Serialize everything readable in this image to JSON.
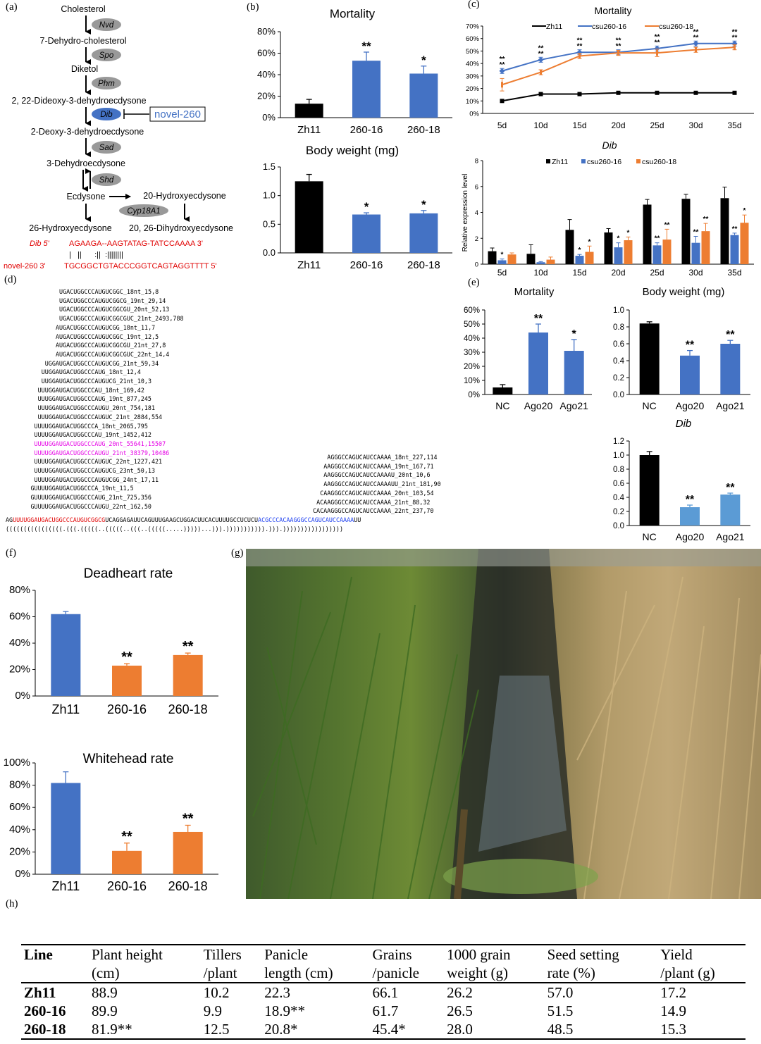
{
  "panel_labels": {
    "a": "(a)",
    "b": "(b)",
    "c": "(c)",
    "d": "(d)",
    "e": "(e)",
    "f": "(f)",
    "g": "(g)",
    "h": "(h)"
  },
  "pathway": {
    "compounds": [
      "Cholesterol",
      "7-Dehydro-cholesterol",
      "Diketol",
      "2, 22-Dideoxy-3-dehydroecdysone",
      "2-Deoxy-3-dehydroecdysone",
      "3-Dehydroecdysone",
      "Ecdysone",
      "20-Hydroxyecdysone",
      "26-Hydroxyecdysone",
      "20, 26-Dihydroxyecdysone"
    ],
    "enzymes": [
      "Nvd",
      "Spo",
      "Phm",
      "Dib",
      "Sad",
      "Shd",
      "Cyp18A1"
    ],
    "mirna_box": "novel-260",
    "target_label": "Dib 5'",
    "target_seq": "AGAAGA--AAGTATAG-TATCCAAAA 3'",
    "pairing": "|   ||      :||  :||||||||",
    "mirna_label": "novel-260 3'",
    "mirna_seq": "TGCGGCTGTACCCGGTCAGTAGGTTTT 5'"
  },
  "reads_left": [
    "UGACUGGCCCAUGUCGGC_18nt_15,8",
    "UGACUGGCCCAUGUCGGCG_19nt_29,14",
    "UGACUGGCCCAUGUCGGCGU_20nt_52,13",
    "UGACUGGCCCAUGUCGGCGUC_21nt_2493,788",
    "AUGACUGGCCCAUGUCGG_18nt_11,7",
    "AUGACUGGCCCAUGUCGGC_19nt_12,5",
    "AUGACUGGCCCAUGUCGGCGU_21nt_27,8",
    "AUGACUGGCCCAUGUCGGCGUC_22nt_14,4",
    "UGGAUGACUGGCCCAUGUCGG_21nt_59,34",
    "UUGGAUGACUGGCCCAUG_18nt_12,4",
    "UUGGAUGACUGGCCCAUGUCG_21nt_10,3",
    "UUUGGAUGACUGGCCCAU_18nt_169,42",
    "UUUGGAUGACUGGCCCAUG_19nt_877,245",
    "UUUGGAUGACUGGCCCAUGU_20nt_754,181",
    "UUUGGAUGACUGGCCCAUGUC_21nt_2884,554",
    "UUUUGGAUGACUGGCCCA_18nt_2065,795",
    "UUUUGGAUGACUGGCCCAU_19nt_1452,412",
    "UUUUGGAUGACUGGCCCAUG_20nt_55641,15507",
    "UUUUGGAUGACUGGCCCAUGU_21nt_38379,10486",
    "UUUUGGAUGACUGGCCCAUGUC_22nt_1227,421",
    "UUUUGGAUGACUGGCCCAUGUCG_23nt_50,13",
    "UUUUGGAUGACUGGCCCAUGUCGG_24nt_17,11",
    "GUUUUGGAUGACUGGCCCA_19nt_11,5",
    "GUUUUGGAUGACUGGCCCAUG_21nt_725,356",
    "GUUUUGGAUGACUGGCCCAUGU_22nt_162,50"
  ],
  "reads_right": [
    "AGGGCCAGUCAUCCAAAA_18nt_227,114",
    "AAGGGCCAGUCAUCCAAAA_19nt_167,71",
    "AAGGGCCAGUCAUCCAAAAU_20nt_10,6",
    "AAGGGCCAGUCAUCCAAAAUU_21nt_181,90",
    "CAAGGGCCAGUCAUCCAAAA_20nt_103,54",
    "ACAAGGGCCAGUCAUCCAAAA_21nt_88,32",
    "CACAAGGGCCAGUCAUCCAAAA_22nt_237,70"
  ],
  "precursor": {
    "prefix": "AG",
    "mature": "UUUUGGAUGACUGGCCCAUGUCGGCG",
    "loop": "UCAGGAGAUUCAGUUUGAAGCUGGACUUCACUUUUGCCUCUCU",
    "star": "ACGCCCACAAGGGCCAGUCAUCCAAAA",
    "tail": "UU",
    "structure": "((((((((((((((((.(((.(((((..(((((..(((..(((((.....)))))...))).))))))))))).))).)))))))))))))))))"
  },
  "colors": {
    "black": "#000000",
    "blue": "#4472C4",
    "lightblue": "#5B9BD5",
    "orange": "#ED7D31",
    "magenta": "#E600E6",
    "red": "#E00000",
    "seqblue": "#1a3cf0"
  },
  "chart_data": [
    {
      "id": "b1",
      "type": "bar",
      "title": "Mortality",
      "categories": [
        "Zh11",
        "260-16",
        "260-18"
      ],
      "values": [
        13,
        53,
        41
      ],
      "errors": [
        4,
        8,
        7
      ],
      "sig": [
        "",
        "**",
        "*"
      ],
      "ylim": [
        0,
        80
      ],
      "yticks": [
        "0%",
        "20%",
        "40%",
        "60%",
        "80%"
      ],
      "colors": [
        "#000000",
        "#4472C4",
        "#4472C4"
      ]
    },
    {
      "id": "b2",
      "type": "bar",
      "title": "Body weight (mg)",
      "categories": [
        "Zh11",
        "260-16",
        "260-18"
      ],
      "values": [
        1.25,
        0.67,
        0.69
      ],
      "errors": [
        0.12,
        0.03,
        0.05
      ],
      "sig": [
        "",
        "*",
        "*"
      ],
      "ylim": [
        0,
        1.5
      ],
      "yticks": [
        "0.0",
        "0.5",
        "1.0",
        "1.5"
      ],
      "colors": [
        "#000000",
        "#4472C4",
        "#4472C4"
      ]
    },
    {
      "id": "c1",
      "type": "line",
      "title": "Mortality",
      "x": [
        "5d",
        "10d",
        "15d",
        "20d",
        "25d",
        "30d",
        "35d"
      ],
      "series": [
        {
          "name": "Zh11",
          "values": [
            10,
            15.5,
            15.5,
            16.5,
            16.5,
            16.5,
            16.5
          ],
          "errors": [
            0,
            0,
            0,
            0,
            0,
            0,
            0
          ],
          "color": "#000000",
          "marker": "square"
        },
        {
          "name": "csu260-16",
          "values": [
            34,
            43,
            49,
            49,
            52,
            56,
            56
          ],
          "errors": [
            2,
            2,
            2,
            2,
            2,
            2,
            2
          ],
          "color": "#4472C4",
          "marker": "diamond"
        },
        {
          "name": "csu260-18",
          "values": [
            23,
            33,
            46,
            48.5,
            48.5,
            51,
            53
          ],
          "errors": [
            5,
            2,
            2,
            2,
            3,
            2,
            2
          ],
          "color": "#ED7D31",
          "marker": "bar"
        }
      ],
      "sig": [
        [
          "**",
          "**"
        ],
        [
          "**",
          "**"
        ],
        [
          "**",
          "**"
        ],
        [
          "**",
          "**"
        ],
        [
          "**",
          "**"
        ],
        [
          "**",
          "**"
        ],
        [
          "**",
          "**"
        ]
      ],
      "ylim": [
        0,
        70
      ],
      "yticks": [
        "0%",
        "10%",
        "20%",
        "30%",
        "40%",
        "50%",
        "60%",
        "70%"
      ]
    },
    {
      "id": "c2",
      "type": "bar",
      "title": "Dib",
      "ylabel": "Relative expression level",
      "categories": [
        "5d",
        "10d",
        "15d",
        "20d",
        "25d",
        "30d",
        "35d"
      ],
      "series": [
        {
          "name": "Zh11",
          "values": [
            1.0,
            0.8,
            2.65,
            2.45,
            4.6,
            5.05,
            5.1
          ],
          "errors": [
            0.25,
            0.7,
            0.8,
            0.3,
            0.4,
            0.35,
            0.85
          ],
          "color": "#000000"
        },
        {
          "name": "csu260-16",
          "values": [
            0.3,
            0.15,
            0.65,
            1.3,
            1.45,
            1.65,
            2.25
          ],
          "errors": [
            0.1,
            0.05,
            0.1,
            0.35,
            0.2,
            0.5,
            0.15
          ],
          "color": "#4472C4"
        },
        {
          "name": "csu260-18",
          "values": [
            0.75,
            0.35,
            0.95,
            1.85,
            1.9,
            2.55,
            3.2
          ],
          "errors": [
            0.12,
            0.2,
            0.45,
            0.25,
            0.8,
            0.6,
            0.6
          ],
          "color": "#ED7D31"
        }
      ],
      "sig": [
        [
          "*",
          ""
        ],
        [
          "",
          ""
        ],
        [
          "*",
          "*"
        ],
        [
          "*",
          "*"
        ],
        [
          "**",
          "**"
        ],
        [
          "**",
          "**"
        ],
        [
          "**",
          "*"
        ]
      ],
      "ylim": [
        0,
        8
      ],
      "yticks": [
        "0",
        "2",
        "4",
        "6",
        "8"
      ]
    },
    {
      "id": "e1",
      "type": "bar",
      "title": "Mortality",
      "categories": [
        "NC",
        "Ago20",
        "Ago21"
      ],
      "values": [
        5,
        44,
        31
      ],
      "errors": [
        2,
        6,
        8
      ],
      "sig": [
        "",
        "**",
        "*"
      ],
      "ylim": [
        0,
        60
      ],
      "yticks": [
        "0%",
        "10%",
        "20%",
        "30%",
        "40%",
        "50%",
        "60%"
      ],
      "colors": [
        "#000000",
        "#4472C4",
        "#4472C4"
      ]
    },
    {
      "id": "e2",
      "type": "bar",
      "title": "Body weight (mg)",
      "categories": [
        "NC",
        "Ago20",
        "Ago21"
      ],
      "values": [
        0.84,
        0.46,
        0.6
      ],
      "errors": [
        0.02,
        0.06,
        0.04
      ],
      "sig": [
        "",
        "**",
        "**"
      ],
      "ylim": [
        0,
        1.0
      ],
      "yticks": [
        "0.0",
        "0.2",
        "0.4",
        "0.6",
        "0.8",
        "1.0"
      ],
      "colors": [
        "#000000",
        "#4472C4",
        "#4472C4"
      ]
    },
    {
      "id": "e3",
      "type": "bar",
      "title": "Dib",
      "categories": [
        "NC",
        "Ago20",
        "Ago21"
      ],
      "values": [
        1.0,
        0.26,
        0.44
      ],
      "errors": [
        0.05,
        0.03,
        0.02
      ],
      "sig": [
        "",
        "**",
        "**"
      ],
      "ylim": [
        0,
        1.2
      ],
      "yticks": [
        "0.0",
        "0.2",
        "0.4",
        "0.6",
        "0.8",
        "1.0",
        "1.2"
      ],
      "colors": [
        "#000000",
        "#5B9BD5",
        "#5B9BD5"
      ]
    },
    {
      "id": "f1",
      "type": "bar",
      "title": "Deadheart rate",
      "categories": [
        "Zh11",
        "260-16",
        "260-18"
      ],
      "values": [
        62,
        23,
        31
      ],
      "errors": [
        2,
        1.5,
        1.5
      ],
      "sig": [
        "",
        "**",
        "**"
      ],
      "ylim": [
        0,
        80
      ],
      "yticks": [
        "0%",
        "20%",
        "40%",
        "60%",
        "80%"
      ],
      "colors": [
        "#4472C4",
        "#ED7D31",
        "#ED7D31"
      ]
    },
    {
      "id": "f2",
      "type": "bar",
      "title": "Whitehead rate",
      "categories": [
        "Zh11",
        "260-16",
        "260-18"
      ],
      "values": [
        82,
        21,
        38
      ],
      "errors": [
        10,
        7,
        6
      ],
      "sig": [
        "",
        "**",
        "**"
      ],
      "ylim": [
        0,
        100
      ],
      "yticks": [
        "0%",
        "20%",
        "40%",
        "60%",
        "80%",
        "100%"
      ],
      "colors": [
        "#4472C4",
        "#ED7D31",
        "#ED7D31"
      ]
    },
    {
      "id": "h",
      "type": "table",
      "columns": [
        "Line",
        "Plant height (cm)",
        "Tillers /plant",
        "Panicle length (cm)",
        "Grains /panicle",
        "1000 grain weight (g)",
        "Seed setting rate (%)",
        "Yield /plant (g)"
      ],
      "rows": [
        [
          "Zh11",
          "88.9",
          "10.2",
          "22.3",
          "66.1",
          "26.2",
          "57.0",
          "17.2"
        ],
        [
          "260-16",
          "89.9",
          "9.9",
          "18.9**",
          "61.7",
          "26.5",
          "51.5",
          "14.9"
        ],
        [
          "260-18",
          "81.9**",
          "12.5",
          "20.8*",
          "45.4*",
          "28.0",
          "48.5",
          "15.3"
        ]
      ]
    }
  ],
  "table": {
    "headers": [
      [
        "Line",
        ""
      ],
      [
        "Plant height",
        "(cm)"
      ],
      [
        "Tillers",
        "/plant"
      ],
      [
        "Panicle",
        "length (cm)"
      ],
      [
        "Grains",
        "/panicle"
      ],
      [
        "1000 grain",
        "weight (g)"
      ],
      [
        "Seed setting",
        "rate (%)"
      ],
      [
        "Yield",
        "/plant (g)"
      ]
    ],
    "rows": [
      [
        "Zh11",
        "88.9",
        "10.2",
        "22.3",
        "66.1",
        "26.2",
        "57.0",
        "17.2"
      ],
      [
        "260-16",
        "89.9",
        "9.9",
        "18.9**",
        "61.7",
        "26.5",
        "51.5",
        "14.9"
      ],
      [
        "260-18",
        "81.9**",
        "12.5",
        "20.8*",
        "45.4*",
        "28.0",
        "48.5",
        "15.3"
      ]
    ]
  }
}
